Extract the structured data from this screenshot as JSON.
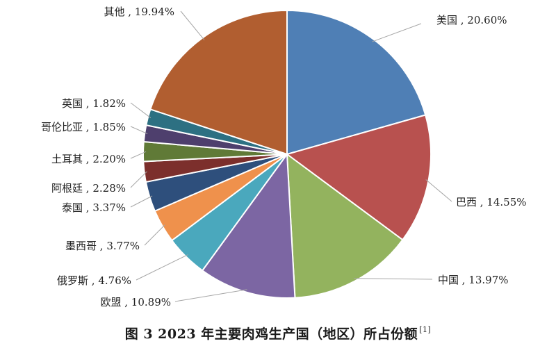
{
  "chart_data": {
    "type": "pie",
    "title": "图 3  2023 年主要肉鸡生产国（地区）所占份额",
    "reference": "[1]",
    "start_angle_deg": 0,
    "direction": "clockwise",
    "slices": [
      {
        "label": "美国",
        "value": 20.6,
        "display": "20.60%",
        "color": "#4f7fb5"
      },
      {
        "label": "巴西",
        "value": 14.55,
        "display": "14.55%",
        "color": "#b8514f"
      },
      {
        "label": "中国",
        "value": 13.97,
        "display": "13.97%",
        "color": "#93b35e"
      },
      {
        "label": "欧盟",
        "value": 10.89,
        "display": "10.89%",
        "color": "#7c66a3"
      },
      {
        "label": "俄罗斯",
        "value": 4.76,
        "display": "4.76%",
        "color": "#4aa8bd"
      },
      {
        "label": "墨西哥",
        "value": 3.77,
        "display": "3.77%",
        "color": "#ef914c"
      },
      {
        "label": "泰国",
        "value": 3.37,
        "display": "3.37%",
        "color": "#2e4f7c"
      },
      {
        "label": "阿根廷",
        "value": 2.28,
        "display": "2.28%",
        "color": "#7c2f2c"
      },
      {
        "label": "土耳其",
        "value": 2.2,
        "display": "2.20%",
        "color": "#607a37"
      },
      {
        "label": "哥伦比亚",
        "value": 1.85,
        "display": "1.85%",
        "color": "#4e3f6d"
      },
      {
        "label": "英国",
        "value": 1.82,
        "display": "1.82%",
        "color": "#2d7082"
      },
      {
        "label": "其他",
        "value": 19.94,
        "display": "19.94%",
        "color": "#b15e30"
      }
    ]
  }
}
